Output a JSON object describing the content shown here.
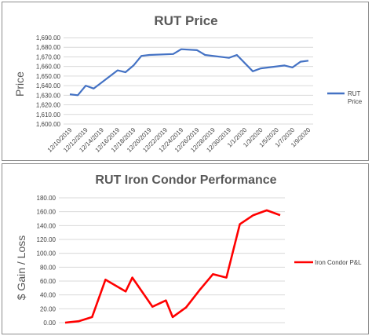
{
  "charts": [
    {
      "id": "price",
      "title": "RUT Price",
      "ylabel": "Price",
      "xlabel": "",
      "accent": "#4472c4",
      "chart_data": {
        "type": "line",
        "title": "RUT Price",
        "ylabel": "Price",
        "ylim": [
          1600,
          1690
        ],
        "yticks": [
          "1,600.00",
          "1,610.00",
          "1,620.00",
          "1,630.00",
          "1,640.00",
          "1,650.00",
          "1,660.00",
          "1,670.00",
          "1,680.00",
          "1,690.00"
        ],
        "xticks": [
          "12/10/2019",
          "12/12/2019",
          "12/14/2019",
          "12/16/2019",
          "12/18/2019",
          "12/20/2019",
          "12/22/2019",
          "12/24/2019",
          "12/26/2019",
          "12/28/2019",
          "12/30/2019",
          "1/1/2020",
          "1/3/2020",
          "1/5/2020",
          "1/7/2020",
          "1/9/2020"
        ],
        "legend_position": "right",
        "series": [
          {
            "name": "RUT Price",
            "x": [
              "12/10/2019",
              "12/11/2019",
              "12/12/2019",
              "12/13/2019",
              "12/16/2019",
              "12/17/2019",
              "12/18/2019",
              "12/19/2019",
              "12/20/2019",
              "12/23/2019",
              "12/24/2019",
              "12/26/2019",
              "12/27/2019",
              "12/30/2019",
              "12/31/2019",
              "1/2/2020",
              "1/3/2020",
              "1/6/2020",
              "1/7/2020",
              "1/8/2020",
              "1/9/2020"
            ],
            "values": [
              1631,
              1630,
              1640,
              1637,
              1656,
              1654,
              1661,
              1671,
              1672,
              1673,
              1678,
              1677,
              1672,
              1669,
              1672,
              1655,
              1658,
              1661,
              1659,
              1665,
              1666
            ]
          }
        ]
      }
    },
    {
      "id": "condor",
      "title": "RUT Iron Condor Performance",
      "ylabel": "$ Gain / Loss",
      "xlabel": "",
      "accent": "#ff0000",
      "chart_data": {
        "type": "line",
        "title": "RUT Iron Condor Performance",
        "ylabel": "$ Gain / Loss",
        "ylim": [
          0,
          180
        ],
        "yticks": [
          "0.00",
          "20.00",
          "40.00",
          "60.00",
          "80.00",
          "100.00",
          "120.00",
          "140.00",
          "160.00",
          "180.00"
        ],
        "legend_position": "right",
        "series": [
          {
            "name": "Iron Condor P&L",
            "x": [
              0,
              1,
              2,
              3,
              4.5,
              5,
              6.5,
              7.5,
              8,
              9,
              10,
              11,
              12,
              13,
              14,
              15,
              16
            ],
            "values": [
              0,
              2,
              8,
              62,
              45,
              65,
              23,
              32,
              8,
              22,
              47,
              70,
              65,
              142,
              155,
              162,
              155
            ]
          }
        ]
      }
    }
  ]
}
